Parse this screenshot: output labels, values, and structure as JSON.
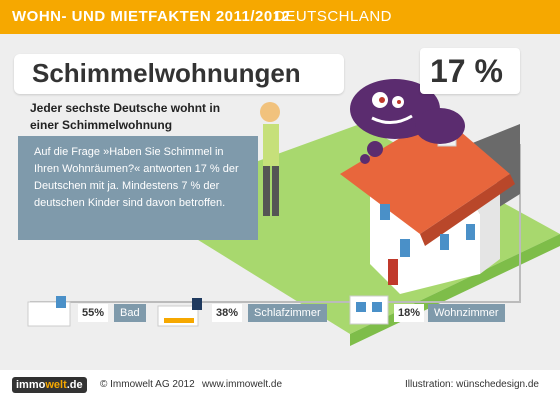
{
  "header": {
    "title": "WOHN- UND MIETFAKTEN 2011/2012",
    "region": "DEUTSCHLAND"
  },
  "main": {
    "heading": "Schimmelwohnungen",
    "headline_value": "17 %",
    "subheading": "Jeder sechste Deutsche wohnt in einer Schimmelwohnung",
    "info_text": "Auf die Frage »Haben Sie Schimmel in Ihren Wohnräumen?« antworten 17 % der Deutschen mit ja. Mindestens 7 % der deutschen Kinder sind davon betroffen."
  },
  "rooms": [
    {
      "value": "55%",
      "label": "Bad",
      "icon": "bathtub-icon"
    },
    {
      "value": "38%",
      "label": "Schlafzimmer",
      "icon": "bed-icon"
    },
    {
      "value": "18%",
      "label": "Wohnzimmer",
      "icon": "window-icon"
    }
  ],
  "footer": {
    "logo_main": "immo",
    "logo_accent": "welt",
    "logo_suffix": ".de",
    "copyright": "© Immowelt AG 2012",
    "url": "www.immowelt.de",
    "illustration": "Illustration: wünschedesign.de"
  },
  "colors": {
    "header": "#f6a800",
    "info_box": "#7f9aab",
    "lawn": "#a8d86e",
    "roof": "#e8663c",
    "monster": "#5b2c6f"
  }
}
